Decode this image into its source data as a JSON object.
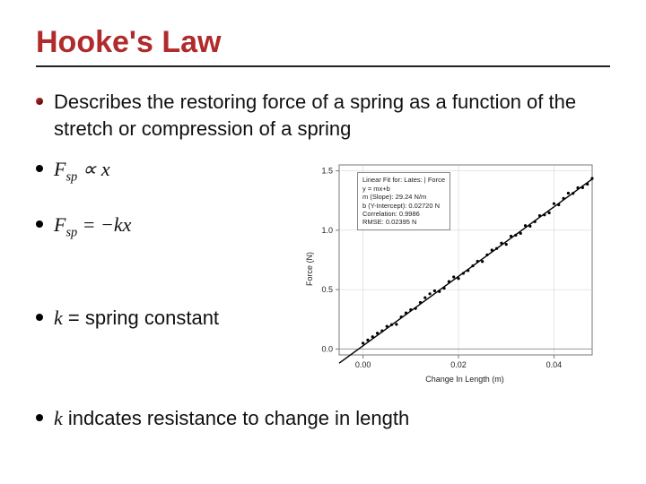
{
  "title": "Hooke's Law",
  "bullets": {
    "b1": "Describes the restoring force of a spring as a function of the stretch or compression of a spring",
    "b2_html": "F<sub>sp</sub> ∝ x",
    "b3_html": "F<sub>sp</sub> = −kx",
    "b4_prefix": "k",
    "b4_rest": " = spring constant",
    "b5_prefix": "k",
    "b5_rest": " indcates resistance to change in length"
  },
  "chart": {
    "type": "scatter-with-fit",
    "xlabel": "Change In Length (m)",
    "ylabel": "Force (N)",
    "xlim": [
      -0.005,
      0.048
    ],
    "ylim": [
      -0.05,
      1.55
    ],
    "xticks": [
      0.0,
      0.02,
      0.04
    ],
    "yticks": [
      0.0,
      0.5,
      1.0,
      1.5
    ],
    "background_color": "#ffffff",
    "grid_color": "#cccccc",
    "axis_color": "#777777",
    "point_color": "#000000",
    "point_size": 1.6,
    "line_color": "#000000",
    "fit_slope": 29.24,
    "fit_intercept": 0.0272,
    "legend_lines": [
      "Linear Fit for: Lates: | Force",
      "y = mx+b",
      "m (Slope): 29.24 N/m",
      "b (Y-Intercept): 0.02720 N",
      "Correlation: 0.9986",
      "RMSE: 0.02395 N"
    ],
    "data": [
      [
        0.0,
        0.03
      ],
      [
        0.001,
        0.06
      ],
      [
        0.002,
        0.08
      ],
      [
        0.003,
        0.12
      ],
      [
        0.004,
        0.15
      ],
      [
        0.005,
        0.18
      ],
      [
        0.006,
        0.2
      ],
      [
        0.007,
        0.23
      ],
      [
        0.008,
        0.26
      ],
      [
        0.009,
        0.29
      ],
      [
        0.01,
        0.32
      ],
      [
        0.011,
        0.35
      ],
      [
        0.012,
        0.38
      ],
      [
        0.013,
        0.41
      ],
      [
        0.014,
        0.44
      ],
      [
        0.015,
        0.47
      ],
      [
        0.016,
        0.5
      ],
      [
        0.017,
        0.53
      ],
      [
        0.018,
        0.56
      ],
      [
        0.019,
        0.59
      ],
      [
        0.02,
        0.61
      ],
      [
        0.021,
        0.64
      ],
      [
        0.022,
        0.67
      ],
      [
        0.023,
        0.7
      ],
      [
        0.024,
        0.73
      ],
      [
        0.025,
        0.76
      ],
      [
        0.026,
        0.79
      ],
      [
        0.027,
        0.82
      ],
      [
        0.028,
        0.85
      ],
      [
        0.029,
        0.88
      ],
      [
        0.03,
        0.9
      ],
      [
        0.031,
        0.93
      ],
      [
        0.032,
        0.96
      ],
      [
        0.033,
        0.99
      ],
      [
        0.034,
        1.02
      ],
      [
        0.035,
        1.05
      ],
      [
        0.036,
        1.08
      ],
      [
        0.037,
        1.11
      ],
      [
        0.038,
        1.14
      ],
      [
        0.039,
        1.17
      ],
      [
        0.04,
        1.2
      ],
      [
        0.041,
        1.23
      ],
      [
        0.042,
        1.26
      ],
      [
        0.043,
        1.29
      ],
      [
        0.044,
        1.32
      ],
      [
        0.045,
        1.35
      ],
      [
        0.046,
        1.38
      ],
      [
        0.047,
        1.41
      ],
      [
        0.048,
        1.44
      ]
    ],
    "noise": 0.025
  }
}
